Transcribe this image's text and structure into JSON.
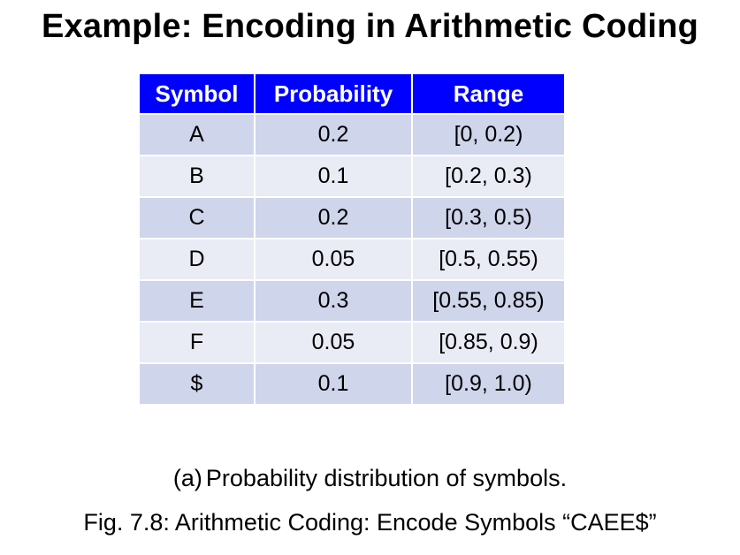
{
  "title": "Example: Encoding in Arithmetic Coding",
  "table": {
    "headers": [
      "Symbol",
      "Probability",
      "Range"
    ],
    "rows": [
      {
        "symbol": "A",
        "probability": "0.2",
        "range": "[0, 0.2)"
      },
      {
        "symbol": "B",
        "probability": "0.1",
        "range": "[0.2, 0.3)"
      },
      {
        "symbol": "C",
        "probability": "0.2",
        "range": "[0.3, 0.5)"
      },
      {
        "symbol": "D",
        "probability": "0.05",
        "range": "[0.5, 0.55)"
      },
      {
        "symbol": "E",
        "probability": "0.3",
        "range": "[0.55, 0.85)"
      },
      {
        "symbol": "F",
        "probability": "0.05",
        "range": "[0.85, 0.9)"
      },
      {
        "symbol": "$",
        "probability": "0.1",
        "range": "[0.9, 1.0)"
      }
    ]
  },
  "caption": {
    "label": "(a)",
    "text": "Probability distribution of symbols."
  },
  "figure_caption": "Fig. 7.8: Arithmetic Coding: Encode Symbols “CAEE$”",
  "colors": {
    "header_background": "#0000ff",
    "header_text": "#ffffff",
    "row_odd": "#cfd5ea",
    "row_even": "#e9ebf5"
  }
}
